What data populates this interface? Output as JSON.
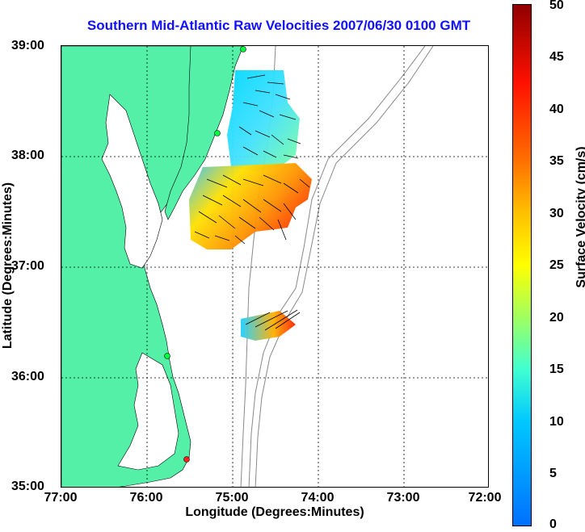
{
  "title": "Southern Mid-Atlantic Raw Velocities 2007/06/30 0100 GMT",
  "xlabel": "Longitude (Degrees:Minutes)",
  "ylabel": "Latitude (Degrees:Minutes)",
  "colorbar_label": "Surface Velocity (cm/s)",
  "x_ticks": [
    "77:00",
    "76:00",
    "75:00",
    "74:00",
    "73:00",
    "72:00"
  ],
  "y_ticks": [
    "39:00",
    "38:00",
    "37:00",
    "36:00",
    "35:00"
  ],
  "colorbar_ticks": [
    "50",
    "45",
    "40",
    "35",
    "30",
    "25",
    "20",
    "15",
    "10",
    "5",
    "0"
  ],
  "colors": {
    "land": "#55f0a8",
    "title": "#1010ff"
  }
}
